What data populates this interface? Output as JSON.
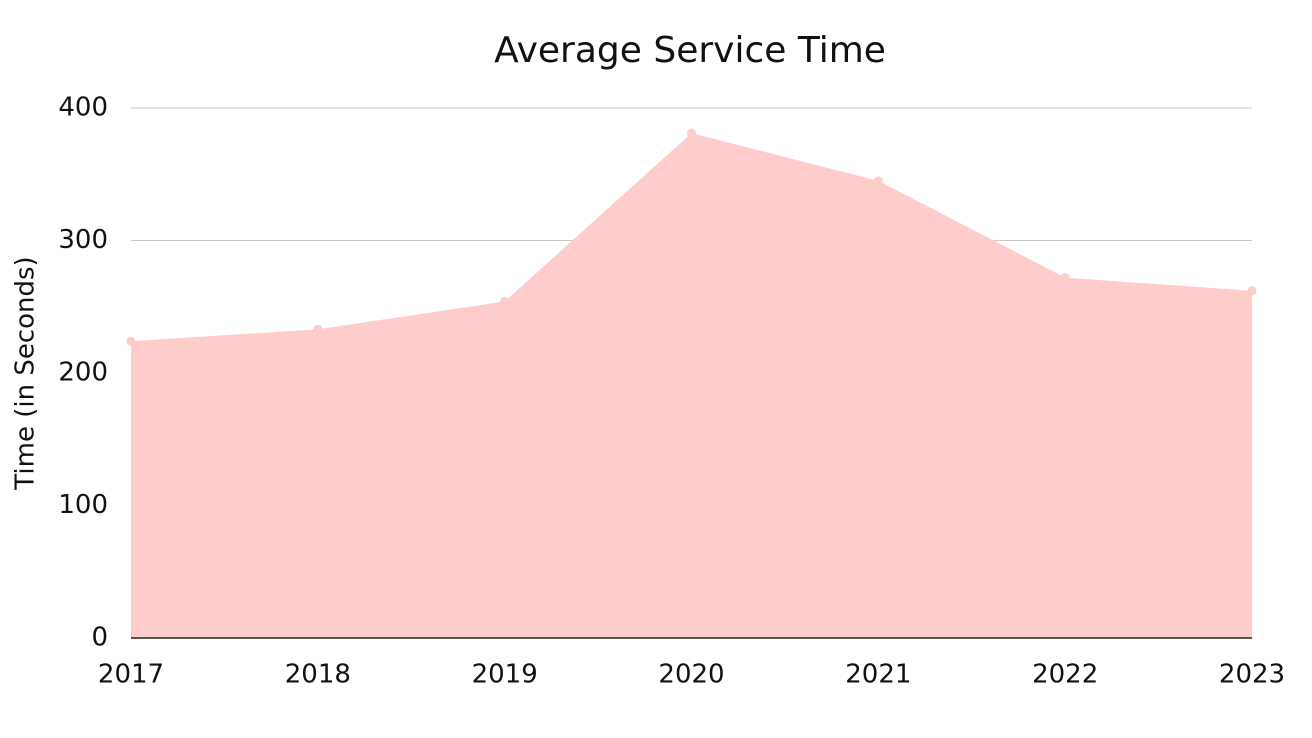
{
  "chart_data": {
    "type": "area",
    "title": "Average Service Time",
    "y_label": "Time (in Seconds)",
    "categories": [
      "2017",
      "2018",
      "2019",
      "2020",
      "2021",
      "2022",
      "2023"
    ],
    "values": [
      224,
      233,
      254,
      381,
      345,
      272,
      262
    ],
    "color": "#ffcccc",
    "ylim": [
      0,
      400
    ],
    "yticks": [
      0,
      100,
      200,
      300,
      400
    ],
    "grid": true
  }
}
